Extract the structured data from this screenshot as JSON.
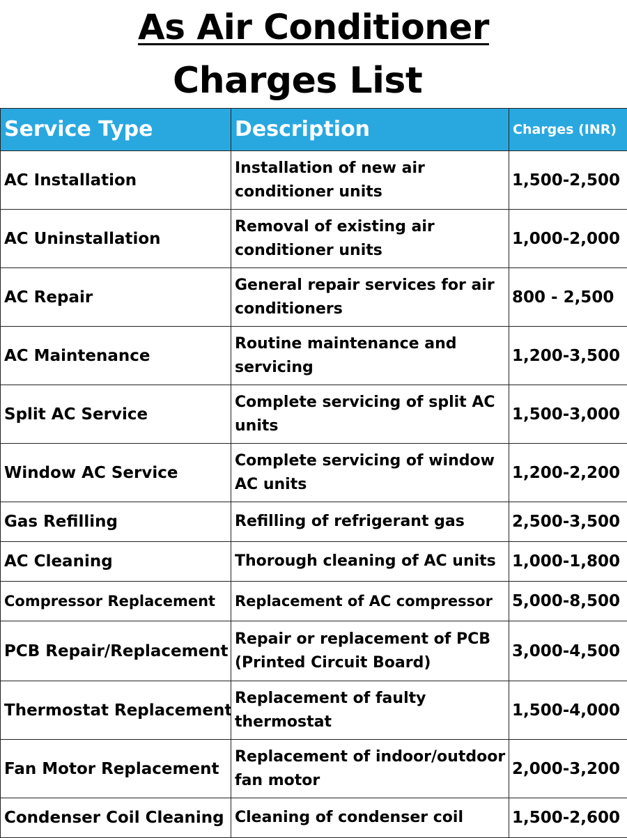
{
  "title": {
    "line1": "As Air Conditioner",
    "line2": "Charges List"
  },
  "table": {
    "headers": [
      "Service Type",
      "Description",
      "Charges (INR)"
    ],
    "colors": {
      "header_bg": "#29a8e0",
      "header_text": "#ffffff"
    },
    "rows": [
      [
        "AC Installation",
        "Installation of new air conditioner units",
        "1,500-2,500"
      ],
      [
        "AC Uninstallation",
        "Removal of existing air conditioner units",
        "1,000-2,000"
      ],
      [
        "AC Repair",
        "General repair services for air conditioners",
        "800 - 2,500"
      ],
      [
        "AC Maintenance",
        "Routine maintenance and servicing",
        "1,200-3,500"
      ],
      [
        "Split AC Service",
        "Complete servicing of split AC units",
        "1,500-3,000"
      ],
      [
        "Window AC Service",
        "Complete servicing of window AC units",
        "1,200-2,200"
      ],
      [
        "Gas Refilling",
        "Refilling of refrigerant gas",
        "2,500-3,500"
      ],
      [
        "AC Cleaning",
        "Thorough cleaning of AC units",
        "1,000-1,800"
      ],
      [
        "Compressor Replacement",
        "Replacement of AC compressor",
        "5,000-8,500"
      ],
      [
        "PCB Repair/Replacement",
        "Repair or replacement of PCB (Printed Circuit Board)",
        "3,000-4,500"
      ],
      [
        "Thermostat Replacement",
        "Replacement of faulty thermostat",
        "1,500-4,000"
      ],
      [
        "Fan Motor Replacement",
        "Replacement of indoor/outdoor fan motor",
        "2,000-3,200"
      ],
      [
        "Condenser Coil Cleaning",
        "Cleaning of condenser coil",
        "1,500-2,600"
      ]
    ]
  }
}
